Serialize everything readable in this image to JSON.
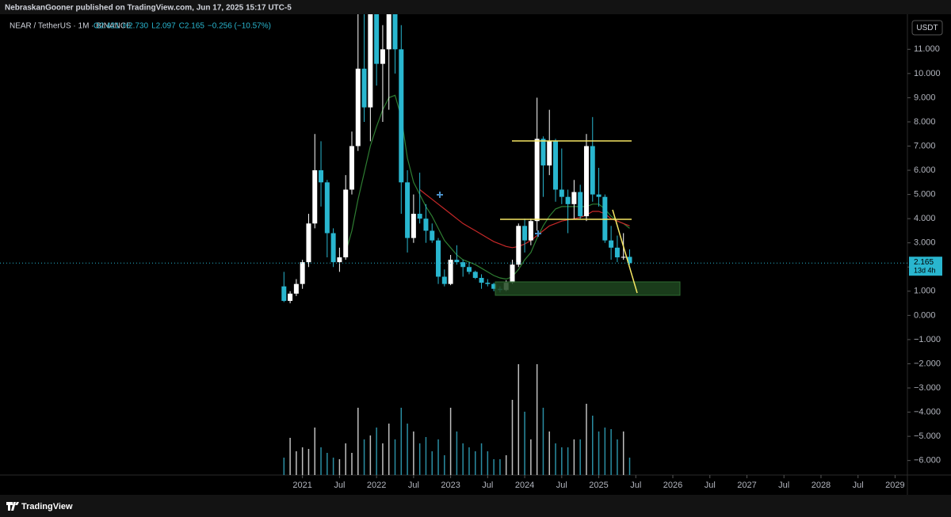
{
  "header": {
    "text": "NebraskanGooner published on TradingView.com, Jun 17, 2025 15:17 UTC-5"
  },
  "footer": {
    "brand": "TradingView"
  },
  "chart_data": {
    "type": "candlestick",
    "symbol": "NEAR / TetherUS · 1M · BINANCE",
    "ohlc_labels": [
      "O2.421",
      "H2.730",
      "L2.097",
      "C2.165"
    ],
    "change_label": "−0.256 (−10.57%)",
    "currency": "USDT",
    "countdown": "13d 4h",
    "up_color": "#ffffff",
    "down_color": "#29b6cf",
    "x": [
      "2020-10",
      "2020-11",
      "2020-12",
      "2021-01",
      "2021-02",
      "2021-03",
      "2021-04",
      "2021-05",
      "2021-06",
      "2021-07",
      "2021-08",
      "2021-09",
      "2021-10",
      "2021-11",
      "2021-12",
      "2022-01",
      "2022-02",
      "2022-03",
      "2022-04",
      "2022-05",
      "2022-06",
      "2022-07",
      "2022-08",
      "2022-09",
      "2022-10",
      "2022-11",
      "2022-12",
      "2023-01",
      "2023-02",
      "2023-03",
      "2023-04",
      "2023-05",
      "2023-06",
      "2023-07",
      "2023-08",
      "2023-09",
      "2023-10",
      "2023-11",
      "2023-12",
      "2024-01",
      "2024-02",
      "2024-03",
      "2024-04",
      "2024-05",
      "2024-06",
      "2024-07",
      "2024-08",
      "2024-09",
      "2024-10",
      "2024-11",
      "2024-12",
      "2025-01",
      "2025-02",
      "2025-03",
      "2025-04",
      "2025-05",
      "2025-06"
    ],
    "open": [
      1.2,
      0.6,
      0.9,
      1.3,
      2.2,
      3.8,
      6.0,
      5.5,
      3.4,
      2.2,
      2.4,
      5.2,
      7.0,
      10.2,
      8.6,
      12.5,
      10.4,
      11.0,
      16.5,
      11.0,
      5.5,
      3.2,
      4.2,
      4.0,
      3.5,
      3.1,
      1.6,
      1.3,
      2.3,
      2.2,
      2.0,
      1.8,
      1.55,
      1.35,
      1.3,
      1.1,
      1.05,
      1.35,
      2.1,
      3.7,
      3.1,
      3.9,
      7.3,
      6.2,
      7.2,
      5.2,
      4.9,
      4.6,
      5.1,
      4.1,
      7.0,
      5.0,
      4.9,
      3.1,
      2.8,
      2.4,
      2.421
    ],
    "high": [
      1.8,
      1.0,
      1.5,
      2.3,
      4.2,
      7.5,
      7.2,
      5.6,
      3.6,
      2.8,
      5.8,
      7.6,
      12.5,
      13.0,
      12.5,
      20.6,
      12.0,
      20.0,
      19.0,
      12.0,
      6.0,
      5.0,
      5.9,
      4.6,
      3.8,
      3.2,
      1.9,
      2.5,
      2.9,
      2.3,
      2.2,
      1.85,
      1.7,
      1.5,
      1.35,
      1.2,
      1.45,
      2.3,
      3.8,
      4.0,
      4.0,
      9.0,
      7.4,
      8.5,
      7.3,
      6.9,
      5.2,
      5.6,
      5.4,
      7.5,
      8.2,
      6.1,
      5.0,
      3.7,
      3.3,
      3.4,
      2.73
    ],
    "low": [
      0.55,
      0.5,
      0.8,
      1.1,
      2.0,
      3.6,
      4.5,
      2.4,
      2.0,
      1.8,
      2.3,
      5.0,
      6.8,
      8.0,
      7.2,
      9.5,
      8.0,
      8.5,
      10.0,
      4.2,
      2.6,
      3.0,
      3.8,
      3.0,
      3.0,
      1.3,
      1.2,
      1.25,
      2.1,
      1.6,
      1.7,
      1.5,
      1.1,
      1.2,
      1.0,
      0.95,
      1.0,
      1.3,
      2.0,
      2.6,
      2.9,
      3.5,
      4.9,
      5.8,
      4.7,
      4.6,
      3.4,
      4.0,
      4.0,
      3.9,
      4.7,
      4.5,
      3.0,
      2.3,
      2.2,
      2.3,
      2.097
    ],
    "close": [
      0.6,
      0.9,
      1.3,
      2.2,
      3.8,
      6.0,
      5.5,
      3.4,
      2.2,
      2.4,
      5.2,
      7.0,
      10.2,
      8.6,
      12.5,
      10.4,
      11.0,
      16.5,
      11.0,
      5.5,
      3.2,
      4.2,
      4.0,
      3.5,
      3.1,
      1.6,
      1.3,
      2.3,
      2.2,
      2.0,
      1.8,
      1.55,
      1.35,
      1.3,
      1.1,
      1.05,
      1.35,
      2.1,
      3.7,
      3.1,
      3.9,
      7.3,
      6.2,
      7.2,
      5.2,
      4.9,
      4.6,
      5.1,
      4.1,
      7.0,
      5.0,
      4.9,
      3.1,
      2.8,
      2.4,
      2.42,
      2.165
    ],
    "volume": [
      22,
      47,
      30,
      35,
      33,
      60,
      35,
      28,
      22,
      20,
      40,
      28,
      85,
      45,
      50,
      60,
      40,
      65,
      45,
      85,
      65,
      55,
      40,
      48,
      30,
      45,
      25,
      85,
      55,
      40,
      35,
      30,
      40,
      30,
      20,
      20,
      25,
      95,
      140,
      80,
      45,
      140,
      85,
      55,
      40,
      35,
      35,
      45,
      45,
      90,
      75,
      55,
      60,
      58,
      45,
      55,
      22
    ],
    "vlim": [
      0,
      150
    ],
    "series": [
      {
        "color": "#2e7d32",
        "values": [
          null,
          null,
          null,
          null,
          null,
          null,
          null,
          null,
          null,
          null,
          2.6,
          3.5,
          4.8,
          5.9,
          7.0,
          7.8,
          8.5,
          9.0,
          9.1,
          8.2,
          6.5,
          5.5,
          5.0,
          4.5,
          4.1,
          3.6,
          3.1,
          2.8,
          2.5,
          2.3,
          2.2,
          2.1,
          1.95,
          1.8,
          1.65,
          1.55,
          1.5,
          1.6,
          1.9,
          2.3,
          2.6,
          3.2,
          3.7,
          4.1,
          4.4,
          4.5,
          4.5,
          4.5,
          4.5,
          4.5,
          4.6,
          4.6,
          4.4,
          4.1,
          3.9,
          3.8,
          3.6
        ]
      },
      {
        "color": "#c62828",
        "values": [
          null,
          null,
          null,
          null,
          null,
          null,
          null,
          null,
          null,
          null,
          null,
          null,
          null,
          null,
          null,
          null,
          null,
          null,
          null,
          null,
          null,
          null,
          5.2,
          5.0,
          4.8,
          4.6,
          4.4,
          4.2,
          4.0,
          3.8,
          3.65,
          3.5,
          3.35,
          3.2,
          3.05,
          2.95,
          2.85,
          2.8,
          2.85,
          2.95,
          3.1,
          3.3,
          3.5,
          3.7,
          3.8,
          3.9,
          3.95,
          4.0,
          4.05,
          4.15,
          4.3,
          4.3,
          4.2,
          4.0,
          3.9,
          3.8,
          3.7
        ]
      }
    ],
    "xlim": [
      "2016-12",
      "2029-03"
    ],
    "xticks": [
      {
        "value": "2021-01",
        "label": "2021"
      },
      {
        "value": "2021-07",
        "label": "Jul"
      },
      {
        "value": "2022-01",
        "label": "2022"
      },
      {
        "value": "2022-07",
        "label": "Jul"
      },
      {
        "value": "2023-01",
        "label": "2023"
      },
      {
        "value": "2023-07",
        "label": "Jul"
      },
      {
        "value": "2024-01",
        "label": "2024"
      },
      {
        "value": "2024-07",
        "label": "Jul"
      },
      {
        "value": "2025-01",
        "label": "2025"
      },
      {
        "value": "2025-07",
        "label": "Jul"
      },
      {
        "value": "2026-01",
        "label": "2026"
      },
      {
        "value": "2026-07",
        "label": "Jul"
      },
      {
        "value": "2027-01",
        "label": "2027"
      },
      {
        "value": "2027-07",
        "label": "Jul"
      },
      {
        "value": "2028-01",
        "label": "2028"
      },
      {
        "value": "2028-07",
        "label": "Jul"
      },
      {
        "value": "2029-01",
        "label": "2029"
      }
    ],
    "ylim": [
      -6.6,
      12.45
    ],
    "yticks": [
      {
        "value": 11,
        "label": "11.000"
      },
      {
        "value": 10,
        "label": "10.000"
      },
      {
        "value": 9,
        "label": "9.000"
      },
      {
        "value": 8,
        "label": "8.000"
      },
      {
        "value": 7,
        "label": "7.000"
      },
      {
        "value": 6,
        "label": "6.000"
      },
      {
        "value": 5,
        "label": "5.000"
      },
      {
        "value": 4,
        "label": "4.000"
      },
      {
        "value": 3,
        "label": "3.000"
      },
      {
        "value": 2,
        "label": "2.000"
      },
      {
        "value": 1,
        "label": "1.000"
      },
      {
        "value": 0,
        "label": "0.000"
      },
      {
        "value": -1,
        "label": "−1.000"
      },
      {
        "value": -2,
        "label": "−2.000"
      },
      {
        "value": -3,
        "label": "−3.000"
      },
      {
        "value": -4,
        "label": "−4.000"
      },
      {
        "value": -5,
        "label": "−5.000"
      },
      {
        "value": -6,
        "label": "−6.000"
      }
    ]
  }
}
